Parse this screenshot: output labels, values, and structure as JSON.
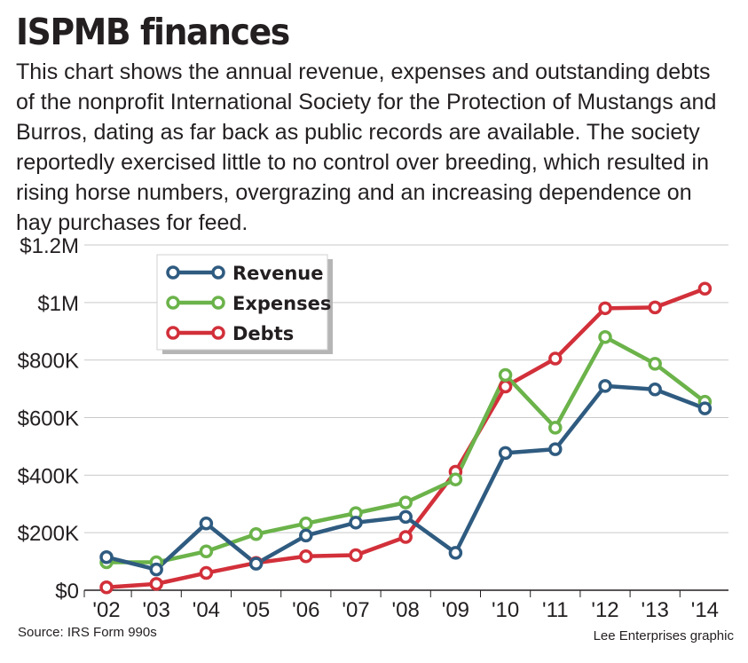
{
  "chart_data": {
    "type": "line",
    "title": "ISPMB finances",
    "subtitle": "This chart shows the annual revenue, expenses and outstanding debts of the nonprofit International Society for the Protection of Mustangs and Burros, dating as far back as public records are available. The society reportedly exercised little to no control over breeding, which resulted in rising horse numbers, overgrazing and an increasing dependence on hay purchases for feed.",
    "xlabel": "",
    "ylabel": "",
    "categories": [
      "'02",
      "'03",
      "'04",
      "'05",
      "'06",
      "'07",
      "'08",
      "'09",
      "'10",
      "'11",
      "'12",
      "'13",
      "'14"
    ],
    "ylim": [
      0,
      1200000
    ],
    "yticks": [
      0,
      200000,
      400000,
      600000,
      800000,
      1000000,
      1200000
    ],
    "ytick_labels": [
      "$0",
      "$200K",
      "$400K",
      "$600K",
      "$800K",
      "$1M",
      "$1.2M"
    ],
    "grid": true,
    "legend_position": "top-left",
    "series": [
      {
        "name": "Revenue",
        "color": "#2f5b80",
        "values": [
          115000,
          72000,
          232000,
          92000,
          190000,
          235000,
          255000,
          130000,
          477000,
          490000,
          710000,
          698000,
          632000
        ]
      },
      {
        "name": "Expenses",
        "color": "#6bb34a",
        "values": [
          97000,
          97000,
          135000,
          195000,
          232000,
          268000,
          305000,
          385000,
          748000,
          565000,
          880000,
          787000,
          655000
        ]
      },
      {
        "name": "Debts",
        "color": "#d2303a",
        "values": [
          10000,
          22000,
          60000,
          95000,
          118000,
          122000,
          185000,
          412000,
          708000,
          805000,
          980000,
          983000,
          1048000
        ]
      }
    ]
  },
  "footer": {
    "source": "Source: IRS Form 990s",
    "credit": "Lee Enterprises graphic"
  }
}
